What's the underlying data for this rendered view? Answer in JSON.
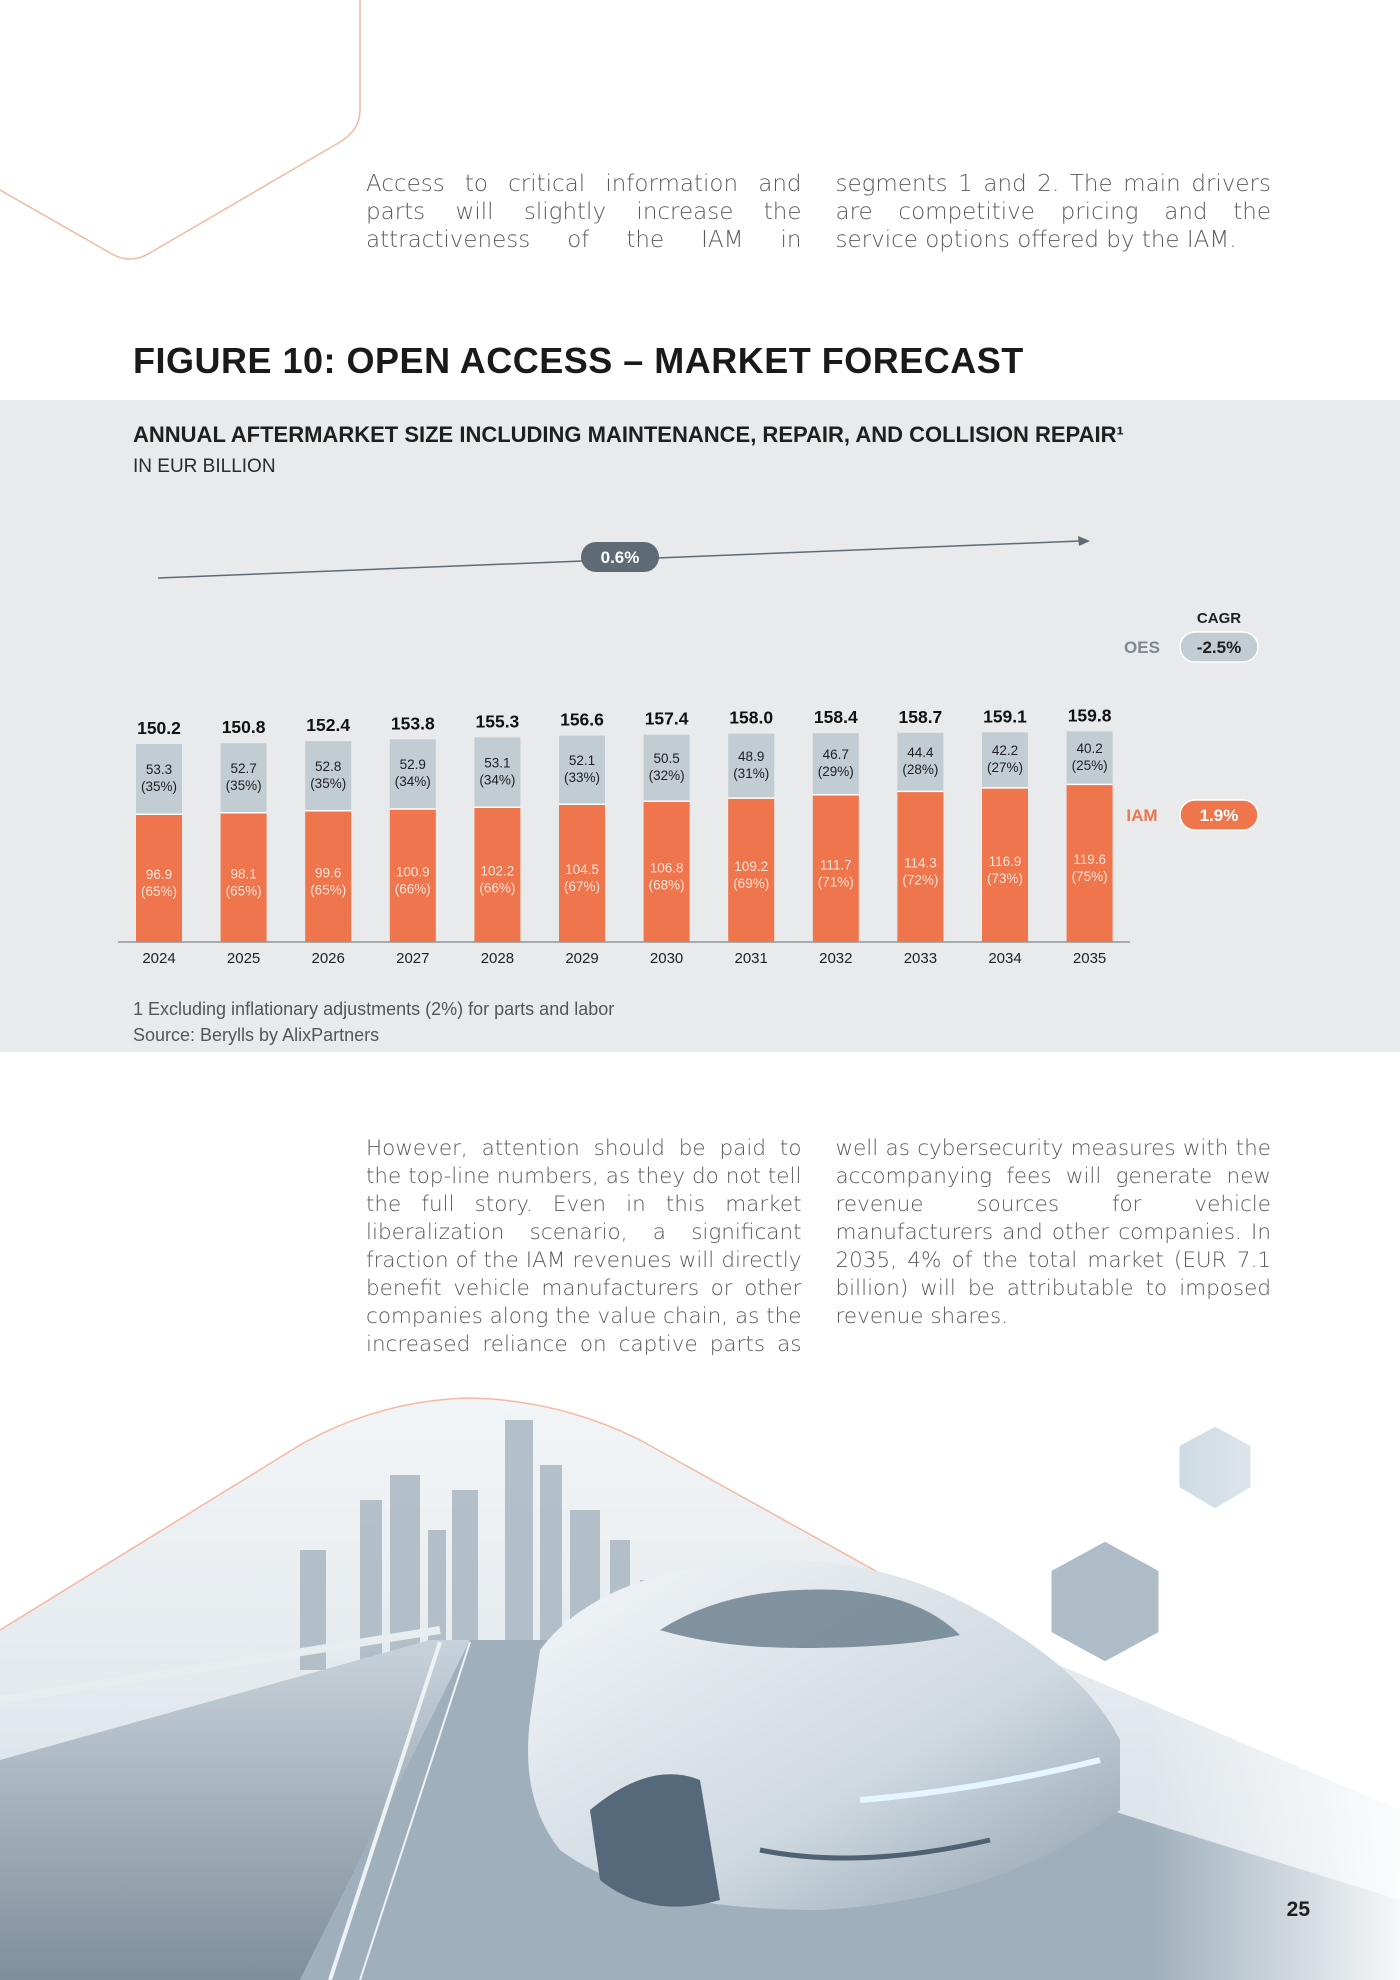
{
  "intro_text": "Access to critical information and parts will slightly increase the attractiveness of the IAM in segments 1 and 2. The main drivers are competitive pricing and the service options offered by the IAM.",
  "figure_title": "FIGURE 10: OPEN ACCESS – MARKET FORECAST",
  "chart_data": {
    "type": "bar",
    "stacked": true,
    "title": "ANNUAL AFTERMARKET SIZE INCLUDING MAINTENANCE, REPAIR, AND COLLISION REPAIR¹",
    "subtitle": "IN EUR BILLION",
    "categories": [
      "2024",
      "2025",
      "2026",
      "2027",
      "2028",
      "2029",
      "2030",
      "2031",
      "2032",
      "2033",
      "2034",
      "2035"
    ],
    "totals": [
      150.2,
      150.8,
      152.4,
      153.8,
      155.3,
      156.6,
      157.4,
      158.0,
      158.4,
      158.7,
      159.1,
      159.8
    ],
    "series": [
      {
        "name": "IAM",
        "color": "#ee754c",
        "label_color": "#fce4da",
        "values": [
          96.9,
          98.1,
          99.6,
          100.9,
          102.2,
          104.5,
          106.8,
          109.2,
          111.7,
          114.3,
          116.9,
          119.6
        ],
        "shares": [
          "65%",
          "65%",
          "65%",
          "66%",
          "66%",
          "67%",
          "68%",
          "69%",
          "71%",
          "72%",
          "73%",
          "75%"
        ]
      },
      {
        "name": "OES",
        "color": "#c1ccd3",
        "label_color": "#1f1f1f",
        "values": [
          53.3,
          52.7,
          52.8,
          52.9,
          53.1,
          52.1,
          50.5,
          48.9,
          46.7,
          44.4,
          42.2,
          40.2
        ],
        "shares": [
          "35%",
          "35%",
          "35%",
          "34%",
          "34%",
          "33%",
          "32%",
          "31%",
          "29%",
          "28%",
          "27%",
          "25%"
        ]
      }
    ],
    "trend_label": "0.6%",
    "cagr_header": "CAGR",
    "cagr": [
      {
        "series": "OES",
        "value": "-2.5%",
        "badge_color": "#c1ccd3",
        "text_color": "#1f1f1f",
        "label_color": "#7d8a93"
      },
      {
        "series": "IAM",
        "value": "1.9%",
        "badge_color": "#ee754c",
        "text_color": "#ffffff",
        "label_color": "#ee754c"
      }
    ]
  },
  "footnote": "1 Excluding inflationary adjustments (2%) for parts and labor",
  "source": "Source: Berylls by AlixPartners",
  "outro_text": "However, attention should be paid to the top-line numbers, as they do not tell the full story. Even in this market liberalization scenario, a significant fraction of the IAM revenues will directly benefit vehicle manufacturers or other companies along the value chain, as the increased reliance on captive parts as well as cybersecurity measures with the accompanying fees will generate new revenue sources for vehicle manufacturers and other companies. In 2035, 4% of the total market (EUR 7.1 billion) will be attributable to imposed revenue shares.",
  "page_number": "25"
}
